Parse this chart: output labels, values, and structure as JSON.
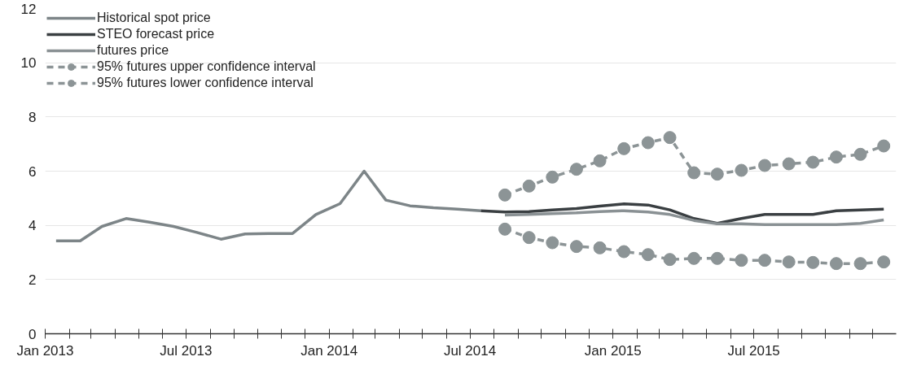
{
  "chart_data": {
    "type": "line",
    "legend": "top left",
    "grid": "y",
    "ylim": [
      0,
      12
    ],
    "yticks": [
      0,
      2,
      4,
      6,
      8,
      10,
      12
    ],
    "xlim": [
      "2013-01-01",
      "2015-12-31"
    ],
    "xticks": [
      {
        "value": "2013-01-01",
        "label": "Jan 2013"
      },
      {
        "value": "2013-02-01",
        "label": null
      },
      {
        "value": "2013-03-01",
        "label": null
      },
      {
        "value": "2013-04-01",
        "label": null
      },
      {
        "value": "2013-05-01",
        "label": null
      },
      {
        "value": "2013-06-01",
        "label": null
      },
      {
        "value": "2013-07-01",
        "label": "Jul 2013"
      },
      {
        "value": "2013-08-01",
        "label": null
      },
      {
        "value": "2013-09-01",
        "label": null
      },
      {
        "value": "2013-10-01",
        "label": null
      },
      {
        "value": "2013-11-01",
        "label": null
      },
      {
        "value": "2013-12-01",
        "label": null
      },
      {
        "value": "2014-01-01",
        "label": "Jan 2014"
      },
      {
        "value": "2014-02-01",
        "label": null
      },
      {
        "value": "2014-03-01",
        "label": null
      },
      {
        "value": "2014-04-01",
        "label": null
      },
      {
        "value": "2014-05-01",
        "label": null
      },
      {
        "value": "2014-06-01",
        "label": null
      },
      {
        "value": "2014-07-01",
        "label": "Jul 2014"
      },
      {
        "value": "2014-08-01",
        "label": null
      },
      {
        "value": "2014-09-01",
        "label": null
      },
      {
        "value": "2014-10-01",
        "label": null
      },
      {
        "value": "2014-11-01",
        "label": null
      },
      {
        "value": "2014-12-01",
        "label": null
      },
      {
        "value": "2015-01-01",
        "label": "Jan 2015"
      },
      {
        "value": "2015-02-01",
        "label": null
      },
      {
        "value": "2015-03-01",
        "label": null
      },
      {
        "value": "2015-04-01",
        "label": null
      },
      {
        "value": "2015-05-01",
        "label": null
      },
      {
        "value": "2015-06-01",
        "label": null
      },
      {
        "value": "2015-07-01",
        "label": "Jul 2015"
      },
      {
        "value": "2015-08-01",
        "label": null
      },
      {
        "value": "2015-09-01",
        "label": null
      },
      {
        "value": "2015-10-01",
        "label": null
      },
      {
        "value": "2015-11-01",
        "label": null
      },
      {
        "value": "2015-12-01",
        "label": null
      }
    ],
    "series": [
      {
        "name": "Historical spot price",
        "color": "#7d8588",
        "marker": "none",
        "line_style": "solid",
        "x": [
          "2013-01-15",
          "2013-02-15",
          "2013-03-15",
          "2013-04-15",
          "2013-05-15",
          "2013-06-15",
          "2013-07-15",
          "2013-08-15",
          "2013-09-15",
          "2013-10-15",
          "2013-11-15",
          "2013-12-15",
          "2014-01-15",
          "2014-02-15",
          "2014-03-15",
          "2014-04-15",
          "2014-05-15",
          "2014-06-15",
          "2014-07-15"
        ],
        "values": [
          3.43,
          3.43,
          3.96,
          4.25,
          4.12,
          3.96,
          3.74,
          3.49,
          3.68,
          3.7,
          3.7,
          4.4,
          4.8,
          6.0,
          4.93,
          4.72,
          4.65,
          4.6,
          4.54
        ]
      },
      {
        "name": "STEO forecast price",
        "color": "#3a3f42",
        "marker": "none",
        "line_style": "solid",
        "x": [
          "2014-07-15",
          "2014-08-15",
          "2014-09-15",
          "2014-10-15",
          "2014-11-15",
          "2014-12-15",
          "2015-01-15",
          "2015-02-15",
          "2015-03-15",
          "2015-04-15",
          "2015-05-15",
          "2015-06-15",
          "2015-07-15",
          "2015-08-15",
          "2015-09-15",
          "2015-10-15",
          "2015-11-15",
          "2015-12-15"
        ],
        "values": [
          4.54,
          4.49,
          4.51,
          4.57,
          4.62,
          4.71,
          4.79,
          4.75,
          4.57,
          4.25,
          4.07,
          4.25,
          4.4,
          4.4,
          4.4,
          4.54,
          4.57,
          4.6
        ]
      },
      {
        "name": "futures price",
        "color": "#8a9194",
        "marker": "none",
        "line_style": "solid",
        "x": [
          "2014-08-15",
          "2014-09-15",
          "2014-10-15",
          "2014-11-15",
          "2014-12-15",
          "2015-01-15",
          "2015-02-15",
          "2015-03-15",
          "2015-04-15",
          "2015-05-15",
          "2015-06-15",
          "2015-07-15",
          "2015-08-15",
          "2015-09-15",
          "2015-10-15",
          "2015-11-15",
          "2015-12-15"
        ],
        "values": [
          4.38,
          4.4,
          4.43,
          4.46,
          4.51,
          4.54,
          4.49,
          4.4,
          4.18,
          4.06,
          4.06,
          4.03,
          4.03,
          4.03,
          4.03,
          4.07,
          4.2
        ]
      },
      {
        "name": "95% futures upper confidence interval",
        "color": "#8c9496",
        "marker": "circle",
        "line_style": "dashed",
        "x": [
          "2014-08-15",
          "2014-09-15",
          "2014-10-15",
          "2014-11-15",
          "2014-12-15",
          "2015-01-15",
          "2015-02-15",
          "2015-03-15",
          "2015-04-15",
          "2015-05-15",
          "2015-06-15",
          "2015-07-15",
          "2015-08-15",
          "2015-09-15",
          "2015-10-15",
          "2015-11-15",
          "2015-12-15"
        ],
        "values": [
          5.12,
          5.45,
          5.78,
          6.07,
          6.38,
          6.83,
          7.05,
          7.24,
          5.94,
          5.89,
          6.03,
          6.21,
          6.27,
          6.33,
          6.52,
          6.62,
          6.93
        ]
      },
      {
        "name": "95% futures lower confidence interval",
        "color": "#8c9496",
        "marker": "circle",
        "line_style": "dashed",
        "x": [
          "2014-08-15",
          "2014-09-15",
          "2014-10-15",
          "2014-11-15",
          "2014-12-15",
          "2015-01-15",
          "2015-02-15",
          "2015-03-15",
          "2015-04-15",
          "2015-05-15",
          "2015-06-15",
          "2015-07-15",
          "2015-08-15",
          "2015-09-15",
          "2015-10-15",
          "2015-11-15",
          "2015-12-15"
        ],
        "values": [
          3.86,
          3.55,
          3.36,
          3.22,
          3.17,
          3.03,
          2.92,
          2.74,
          2.78,
          2.78,
          2.71,
          2.71,
          2.65,
          2.63,
          2.59,
          2.59,
          2.65
        ]
      }
    ]
  }
}
